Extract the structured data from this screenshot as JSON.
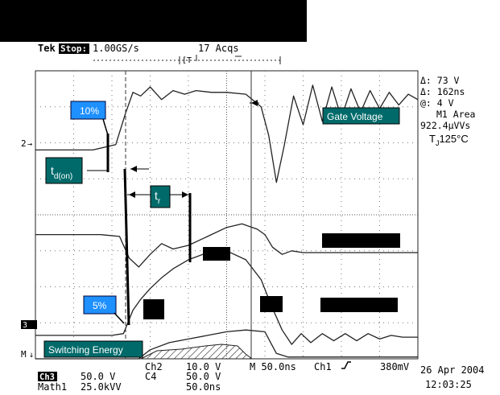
{
  "header": {
    "brand": "Tek",
    "run_state": "Stop:",
    "sample_rate": "1.00GS/s",
    "acquisitions": "17 Acqs"
  },
  "measurements": {
    "delta_v": "Δ: 73 V",
    "delta_t": "Δ: 162ns",
    "at": "@: 4 V",
    "math_label": "M1 Area",
    "math_value": "922.4μVVs",
    "temperature_prefix": "T",
    "temperature_sub": "J",
    "temperature_value": "125°C"
  },
  "annotations": {
    "pct10": "10%",
    "pct5": "5%",
    "td_main": "t",
    "td_sub": "d(on)",
    "tr_main": "t",
    "tr_sub": "r",
    "gate_voltage": "Gate Voltage",
    "switching_energy": "Switching Energy"
  },
  "markers": {
    "ch2": "2",
    "ch3": "3",
    "math": "M"
  },
  "footer": {
    "ch3_badge": "Ch3",
    "ch3_scale": "50.0 V",
    "ch2_label": "Ch2",
    "ch2_scale": "10.0 V",
    "c4_label": "C4",
    "c4_scale": "50.0 V",
    "math_label": "Math1",
    "math_scale": "25.0kVV",
    "math_time": "50.0ns",
    "timebase": "M 50.0ns",
    "trigger_ch": "Ch1",
    "trigger_level": "380mV",
    "date": "26 Apr 2004",
    "time": "12:03:25"
  },
  "colors": {
    "trace": "#222222",
    "label_blue": "#1e90ff",
    "label_teal": "#006a6a",
    "redaction": "#000000"
  },
  "chart_data": {
    "type": "line",
    "xlabel": "",
    "ylabel": "",
    "xlim": [
      0,
      10
    ],
    "ylim": [
      -4,
      4
    ],
    "grid": true,
    "series": [
      {
        "x": [
          0,
          1.5,
          2.1,
          2.35,
          2.55,
          2.75,
          3.0,
          3.3,
          3.6,
          3.9,
          4.2,
          4.6,
          5.0,
          5.5,
          5.9,
          6.1,
          6.3,
          6.5,
          6.75,
          7.0,
          7.25,
          7.5,
          7.75,
          8.0,
          8.25,
          8.5,
          8.75,
          9.0,
          9.25,
          9.5,
          9.75,
          10
        ],
        "y": [
          1.8,
          1.8,
          1.95,
          2.8,
          3.4,
          3.3,
          3.55,
          3.2,
          3.45,
          3.35,
          3.45,
          3.4,
          3.4,
          3.35,
          3.0,
          2.2,
          0.9,
          1.9,
          3.3,
          2.5,
          3.6,
          2.6,
          3.55,
          2.7,
          3.5,
          2.85,
          3.45,
          2.95,
          3.4,
          3.05,
          3.35,
          3.2
        ]
      },
      {
        "x": [
          0,
          1.7,
          2.2,
          2.45,
          2.7,
          3.0,
          3.3,
          3.6,
          4.0,
          4.5,
          5.0,
          5.4,
          5.8,
          6.0,
          6.2,
          6.45,
          6.7,
          7.0,
          7.3,
          7.6,
          7.9,
          8.2,
          8.5,
          9.0,
          9.5,
          10
        ],
        "y": [
          -0.55,
          -0.55,
          -0.6,
          -1.2,
          -1.45,
          -1.1,
          -0.8,
          -0.95,
          -0.85,
          -0.6,
          -0.35,
          -0.25,
          -0.4,
          -0.55,
          -0.9,
          -1.1,
          -1.0,
          -1.05,
          -1.05,
          -1.05,
          -1.05,
          -1.05,
          -1.05,
          -1.05,
          -1.05,
          -1.05
        ]
      },
      {
        "x": [
          0,
          2.0,
          2.3,
          2.55,
          2.75,
          3.0,
          3.3,
          3.6,
          4.0,
          4.5,
          5.0,
          5.5,
          5.9,
          6.2,
          6.45,
          6.7,
          6.95,
          7.2,
          7.5,
          7.8,
          8.1,
          8.4,
          8.7,
          9.0,
          9.3,
          9.6,
          10
        ],
        "y": [
          -3.35,
          -3.35,
          -3.3,
          -2.65,
          -2.35,
          -2.05,
          -1.75,
          -1.5,
          -1.25,
          -1.05,
          -1.0,
          -1.25,
          -1.8,
          -2.6,
          -3.2,
          -3.6,
          -3.3,
          -3.55,
          -3.3,
          -3.5,
          -3.3,
          -3.5,
          -3.3,
          -3.45,
          -3.35,
          -3.4,
          -3.4
        ]
      },
      {
        "x": [
          0,
          2.7,
          3.0,
          3.5,
          4.0,
          4.5,
          5.0,
          5.5,
          6.0,
          6.3,
          6.6,
          10
        ],
        "y": [
          -4.0,
          -4.0,
          -3.75,
          -3.55,
          -3.45,
          -3.35,
          -3.25,
          -3.2,
          -3.25,
          -3.85,
          -3.95,
          -3.95
        ]
      }
    ]
  }
}
